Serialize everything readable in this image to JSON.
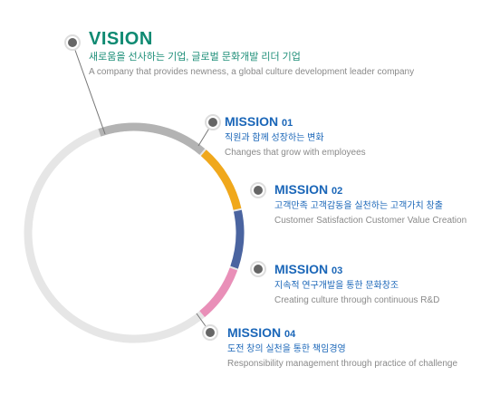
{
  "vision": {
    "title": "VISION",
    "korean": "새로움을 선사하는 기업, 글로벌 문화개발 리더 기업",
    "english": "A company that provides newness, a global culture development leader company"
  },
  "missions": [
    {
      "head": "MISSION",
      "num": "01",
      "korean": "직원과 함께 성장하는 변화",
      "english": "Changes that grow with employees",
      "color": "#f0a81c"
    },
    {
      "head": "MISSION",
      "num": "02",
      "korean": "고객만족 고객감동을 실천하는 고객가치 창출",
      "english": "Customer Satisfaction Customer Value Creation",
      "color": "#4a64a0"
    },
    {
      "head": "MISSION",
      "num": "03",
      "korean": "지속적 연구개발을 통한 문화창조",
      "english": "Creating culture through continuous R&D",
      "color": "#e98fb8"
    },
    {
      "head": "MISSION",
      "num": "04",
      "korean": "도전 창의 실천을 통한 책임경영",
      "english": "Responsibility management through practice of challenge",
      "color": "#cccccc"
    }
  ],
  "colors": {
    "ring_base": "#e6e6e6",
    "ring_top": "#b3b3b3",
    "marker": "#666666"
  }
}
